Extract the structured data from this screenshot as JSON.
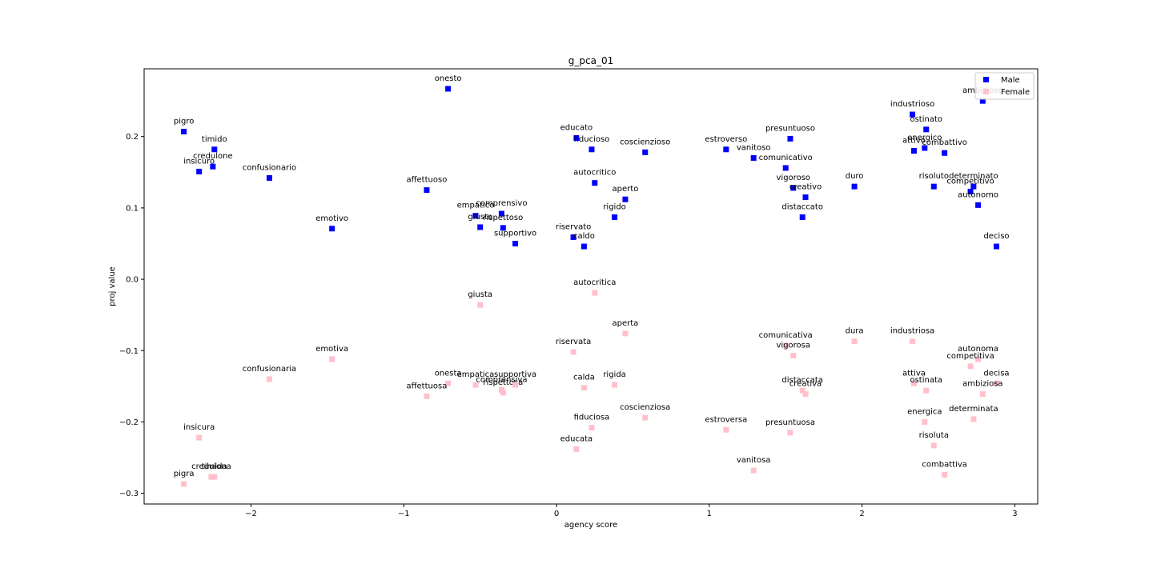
{
  "chart_data": {
    "type": "scatter",
    "title": "g_pca_01",
    "xlabel": "agency score",
    "ylabel": "proj value",
    "xlim": [
      -2.7,
      3.15
    ],
    "ylim": [
      -0.315,
      0.295
    ],
    "xticks": [
      -2,
      -1,
      0,
      1,
      2,
      3
    ],
    "xtick_labels": [
      "−2",
      "−1",
      "0",
      "1",
      "2",
      "3"
    ],
    "yticks": [
      0.2,
      0.1,
      0.0,
      -0.1,
      -0.2,
      -0.3
    ],
    "ytick_labels": [
      "0.2",
      "0.1",
      "0.0",
      "−0.1",
      "−0.2",
      "−0.3"
    ],
    "grid": false,
    "legend": "top-right",
    "series": [
      {
        "name": "Male",
        "color": "#0000ff",
        "points": [
          {
            "label": "pigro",
            "x": -2.44,
            "y": 0.207
          },
          {
            "label": "timido",
            "x": -2.24,
            "y": 0.182
          },
          {
            "label": "credulone",
            "x": -2.25,
            "y": 0.158
          },
          {
            "label": "insicuro",
            "x": -2.34,
            "y": 0.151
          },
          {
            "label": "confusionario",
            "x": -1.88,
            "y": 0.142
          },
          {
            "label": "emotivo",
            "x": -1.47,
            "y": 0.071
          },
          {
            "label": "onesto",
            "x": -0.71,
            "y": 0.267
          },
          {
            "label": "affettuoso",
            "x": -0.85,
            "y": 0.125
          },
          {
            "label": "empatico",
            "x": -0.53,
            "y": 0.089
          },
          {
            "label": "comprensivo",
            "x": -0.36,
            "y": 0.092
          },
          {
            "label": "giusto",
            "x": -0.5,
            "y": 0.073
          },
          {
            "label": "rispettoso",
            "x": -0.35,
            "y": 0.072
          },
          {
            "label": "supportivo",
            "x": -0.27,
            "y": 0.05
          },
          {
            "label": "educato",
            "x": 0.13,
            "y": 0.198
          },
          {
            "label": "fiducioso",
            "x": 0.23,
            "y": 0.182
          },
          {
            "label": "coscienzioso",
            "x": 0.58,
            "y": 0.178
          },
          {
            "label": "autocritico",
            "x": 0.25,
            "y": 0.135
          },
          {
            "label": "aperto",
            "x": 0.45,
            "y": 0.112
          },
          {
            "label": "rigido",
            "x": 0.38,
            "y": 0.087
          },
          {
            "label": "riservato",
            "x": 0.11,
            "y": 0.059
          },
          {
            "label": "caldo",
            "x": 0.18,
            "y": 0.046
          },
          {
            "label": "estroverso",
            "x": 1.11,
            "y": 0.182
          },
          {
            "label": "vanitoso",
            "x": 1.29,
            "y": 0.17
          },
          {
            "label": "presuntuoso",
            "x": 1.53,
            "y": 0.197
          },
          {
            "label": "comunicativo",
            "x": 1.5,
            "y": 0.156
          },
          {
            "label": "vigoroso",
            "x": 1.55,
            "y": 0.128
          },
          {
            "label": "creativo",
            "x": 1.63,
            "y": 0.115
          },
          {
            "label": "distaccato",
            "x": 1.61,
            "y": 0.087
          },
          {
            "label": "duro",
            "x": 1.95,
            "y": 0.13
          },
          {
            "label": "industrioso",
            "x": 2.33,
            "y": 0.231
          },
          {
            "label": "ostinato",
            "x": 2.42,
            "y": 0.21
          },
          {
            "label": "energico",
            "x": 2.41,
            "y": 0.184
          },
          {
            "label": "attivo",
            "x": 2.34,
            "y": 0.18
          },
          {
            "label": "combattivo",
            "x": 2.54,
            "y": 0.177
          },
          {
            "label": "ambizioso",
            "x": 2.79,
            "y": 0.25
          },
          {
            "label": "risoluto",
            "x": 2.47,
            "y": 0.13
          },
          {
            "label": "determinato",
            "x": 2.73,
            "y": 0.13
          },
          {
            "label": "competitivo",
            "x": 2.71,
            "y": 0.123
          },
          {
            "label": "autonomo",
            "x": 2.76,
            "y": 0.104
          },
          {
            "label": "deciso",
            "x": 2.88,
            "y": 0.046
          }
        ]
      },
      {
        "name": "Female",
        "color": "#ffc0cb",
        "points": [
          {
            "label": "pigra",
            "x": -2.44,
            "y": -0.287
          },
          {
            "label": "credulona",
            "x": -2.26,
            "y": -0.277
          },
          {
            "label": "timida",
            "x": -2.24,
            "y": -0.277
          },
          {
            "label": "insicura",
            "x": -2.34,
            "y": -0.222
          },
          {
            "label": "confusionaria",
            "x": -1.88,
            "y": -0.14
          },
          {
            "label": "emotiva",
            "x": -1.47,
            "y": -0.112
          },
          {
            "label": "onesta",
            "x": -0.71,
            "y": -0.146
          },
          {
            "label": "affettuosa",
            "x": -0.85,
            "y": -0.164
          },
          {
            "label": "empatica",
            "x": -0.53,
            "y": -0.148
          },
          {
            "label": "comprensiva",
            "x": -0.36,
            "y": -0.155
          },
          {
            "label": "rispettosa",
            "x": -0.35,
            "y": -0.159
          },
          {
            "label": "supportiva",
            "x": -0.27,
            "y": -0.148
          },
          {
            "label": "giusta",
            "x": -0.5,
            "y": -0.036
          },
          {
            "label": "autocritica",
            "x": 0.25,
            "y": -0.019
          },
          {
            "label": "aperta",
            "x": 0.45,
            "y": -0.076
          },
          {
            "label": "riservata",
            "x": 0.11,
            "y": -0.102
          },
          {
            "label": "calda",
            "x": 0.18,
            "y": -0.152
          },
          {
            "label": "rigida",
            "x": 0.38,
            "y": -0.148
          },
          {
            "label": "coscienziosa",
            "x": 0.58,
            "y": -0.194
          },
          {
            "label": "fiduciosa",
            "x": 0.23,
            "y": -0.208
          },
          {
            "label": "educata",
            "x": 0.13,
            "y": -0.238
          },
          {
            "label": "estroversa",
            "x": 1.11,
            "y": -0.211
          },
          {
            "label": "vanitosa",
            "x": 1.29,
            "y": -0.268
          },
          {
            "label": "presuntuosa",
            "x": 1.53,
            "y": -0.215
          },
          {
            "label": "comunicativa",
            "x": 1.5,
            "y": -0.093
          },
          {
            "label": "vigorosa",
            "x": 1.55,
            "y": -0.107
          },
          {
            "label": "distaccata",
            "x": 1.61,
            "y": -0.156
          },
          {
            "label": "creativa",
            "x": 1.63,
            "y": -0.161
          },
          {
            "label": "dura",
            "x": 1.95,
            "y": -0.087
          },
          {
            "label": "industriosa",
            "x": 2.33,
            "y": -0.087
          },
          {
            "label": "attiva",
            "x": 2.34,
            "y": -0.146
          },
          {
            "label": "ostinata",
            "x": 2.42,
            "y": -0.156
          },
          {
            "label": "energica",
            "x": 2.41,
            "y": -0.2
          },
          {
            "label": "risoluta",
            "x": 2.47,
            "y": -0.233
          },
          {
            "label": "combattiva",
            "x": 2.54,
            "y": -0.274
          },
          {
            "label": "autonoma",
            "x": 2.76,
            "y": -0.112
          },
          {
            "label": "competitiva",
            "x": 2.71,
            "y": -0.122
          },
          {
            "label": "decisa",
            "x": 2.88,
            "y": -0.146
          },
          {
            "label": "ambiziosa",
            "x": 2.79,
            "y": -0.161
          },
          {
            "label": "determinata",
            "x": 2.73,
            "y": -0.196
          }
        ]
      }
    ]
  }
}
